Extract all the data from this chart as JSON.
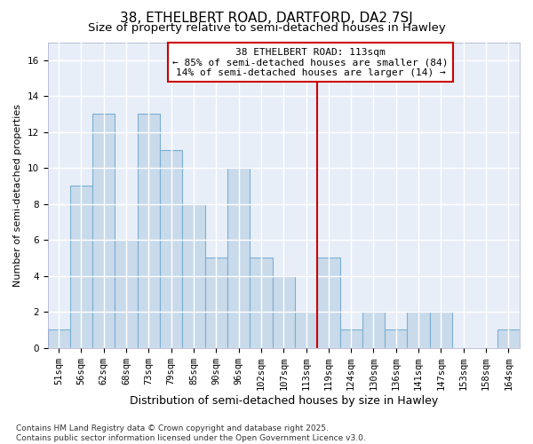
{
  "title": "38, ETHELBERT ROAD, DARTFORD, DA2 7SJ",
  "subtitle": "Size of property relative to semi-detached houses in Hawley",
  "xlabel": "Distribution of semi-detached houses by size in Hawley",
  "ylabel": "Number of semi-detached properties",
  "categories": [
    "51sqm",
    "56sqm",
    "62sqm",
    "68sqm",
    "73sqm",
    "79sqm",
    "85sqm",
    "90sqm",
    "96sqm",
    "102sqm",
    "107sqm",
    "113sqm",
    "119sqm",
    "124sqm",
    "130sqm",
    "136sqm",
    "141sqm",
    "147sqm",
    "153sqm",
    "158sqm",
    "164sqm"
  ],
  "values": [
    1,
    9,
    13,
    6,
    13,
    11,
    8,
    5,
    10,
    5,
    4,
    2,
    5,
    1,
    2,
    1,
    2,
    2,
    0,
    0,
    1
  ],
  "bar_color": "#c9daea",
  "bar_edge_color": "#7ab0d4",
  "ref_line_index": 11,
  "ref_line_color": "#cc0000",
  "annotation_title": "38 ETHELBERT ROAD: 113sqm",
  "annotation_line1": "← 85% of semi-detached houses are smaller (84)",
  "annotation_line2": "14% of semi-detached houses are larger (14) →",
  "ylim": [
    0,
    17
  ],
  "yticks": [
    0,
    2,
    4,
    6,
    8,
    10,
    12,
    14,
    16
  ],
  "fig_bg_color": "#ffffff",
  "plot_bg_color": "#e8eef8",
  "grid_color": "#ffffff",
  "footer": "Contains HM Land Registry data © Crown copyright and database right 2025.\nContains public sector information licensed under the Open Government Licence v3.0.",
  "title_fontsize": 11,
  "subtitle_fontsize": 9.5,
  "xlabel_fontsize": 9,
  "ylabel_fontsize": 8,
  "tick_fontsize": 7.5,
  "footer_fontsize": 6.5,
  "ann_fontsize": 8
}
